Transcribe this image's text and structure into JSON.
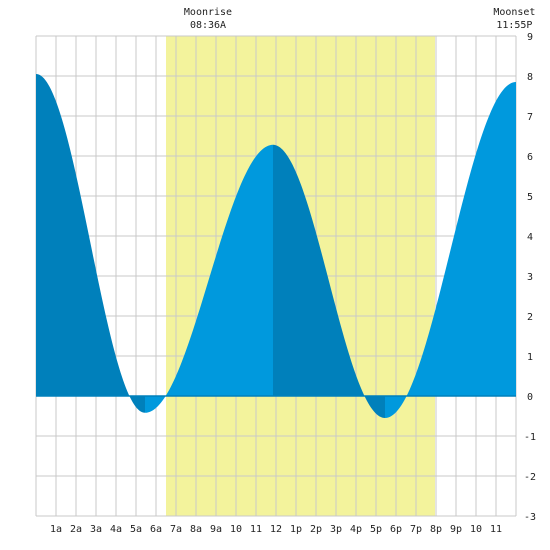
{
  "chart_data": {
    "type": "area",
    "title": "",
    "xlabel": "",
    "ylabel": "",
    "xlim": [
      0,
      24
    ],
    "ylim": [
      -3,
      9
    ],
    "y_ticks": [
      -3,
      -2,
      -1,
      0,
      1,
      2,
      3,
      4,
      5,
      6,
      7,
      8,
      9
    ],
    "x_ticks": [
      {
        "hour": 1,
        "label": "1a"
      },
      {
        "hour": 2,
        "label": "2a"
      },
      {
        "hour": 3,
        "label": "3a"
      },
      {
        "hour": 4,
        "label": "4a"
      },
      {
        "hour": 5,
        "label": "5a"
      },
      {
        "hour": 6,
        "label": "6a"
      },
      {
        "hour": 7,
        "label": "7a"
      },
      {
        "hour": 8,
        "label": "8a"
      },
      {
        "hour": 9,
        "label": "9a"
      },
      {
        "hour": 10,
        "label": "10"
      },
      {
        "hour": 11,
        "label": "11"
      },
      {
        "hour": 12,
        "label": "12"
      },
      {
        "hour": 13,
        "label": "1p"
      },
      {
        "hour": 14,
        "label": "2p"
      },
      {
        "hour": 15,
        "label": "3p"
      },
      {
        "hour": 16,
        "label": "4p"
      },
      {
        "hour": 17,
        "label": "5p"
      },
      {
        "hour": 18,
        "label": "6p"
      },
      {
        "hour": 19,
        "label": "7p"
      },
      {
        "hour": 20,
        "label": "8p"
      },
      {
        "hour": 21,
        "label": "9p"
      },
      {
        "hour": 22,
        "label": "10"
      },
      {
        "hour": 23,
        "label": "11"
      }
    ],
    "grid": true,
    "tide_extremes": [
      {
        "hour": 0.0,
        "height": 8.05
      },
      {
        "hour": 5.45,
        "height": -0.42
      },
      {
        "hour": 11.85,
        "height": 6.28
      },
      {
        "hour": 17.45,
        "height": -0.55
      },
      {
        "hour": 24.0,
        "height": 7.85
      }
    ],
    "daylight": {
      "start_hour": 6.5,
      "end_hour": 19.95
    },
    "moon_events": [
      {
        "label": "Moonrise",
        "time": "08:36A",
        "hour": 8.6
      },
      {
        "label": "Moonset",
        "time": "11:55P",
        "hour": 23.92
      }
    ],
    "colors": {
      "rising": "#0099dd",
      "falling": "#0080bb",
      "daylight": "#f3f39c",
      "grid": "#c8c8c8",
      "background": "#ffffff"
    }
  }
}
